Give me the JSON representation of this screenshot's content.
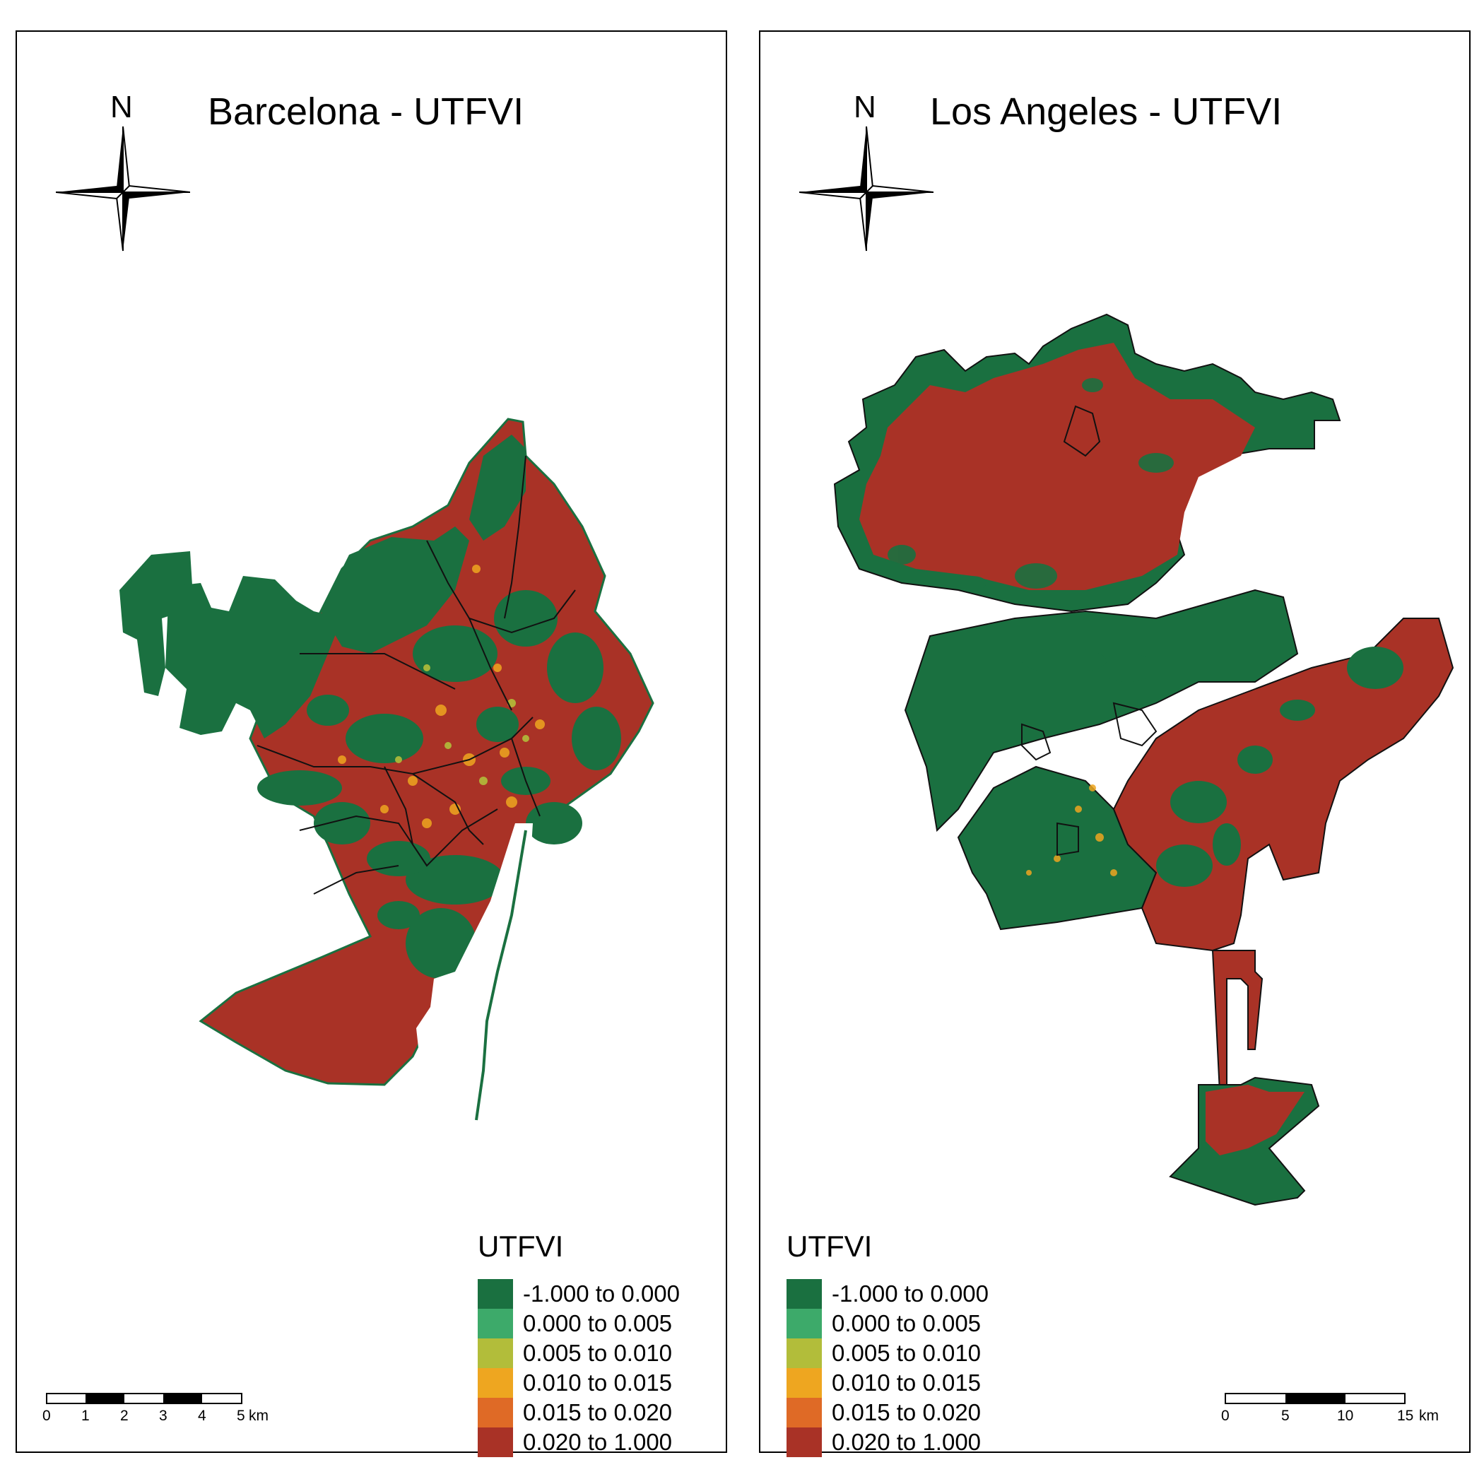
{
  "maps": [
    {
      "id": "barcelona",
      "title": "Barcelona - UTFVI",
      "north_label": "N",
      "scale": {
        "ticks": [
          "0",
          "1",
          "2",
          "3",
          "4",
          "5"
        ],
        "unit": "km"
      }
    },
    {
      "id": "los-angeles",
      "title": "Los Angeles - UTFVI",
      "north_label": "N",
      "scale": {
        "ticks": [
          "0",
          "5",
          "10",
          "15"
        ],
        "unit": "km"
      }
    }
  ],
  "legend": {
    "title": "UTFVI",
    "items": [
      {
        "label": "-1.000 to 0.000",
        "color": "#1a7040"
      },
      {
        "label": "0.000 to 0.005",
        "color": "#3daa6a"
      },
      {
        "label": "0.005 to 0.010",
        "color": "#b2bd3a"
      },
      {
        "label": "0.010 to 0.015",
        "color": "#eea620"
      },
      {
        "label": "0.015 to 0.020",
        "color": "#df6a26"
      },
      {
        "label": "0.020 to 1.000",
        "color": "#a93226"
      }
    ]
  }
}
